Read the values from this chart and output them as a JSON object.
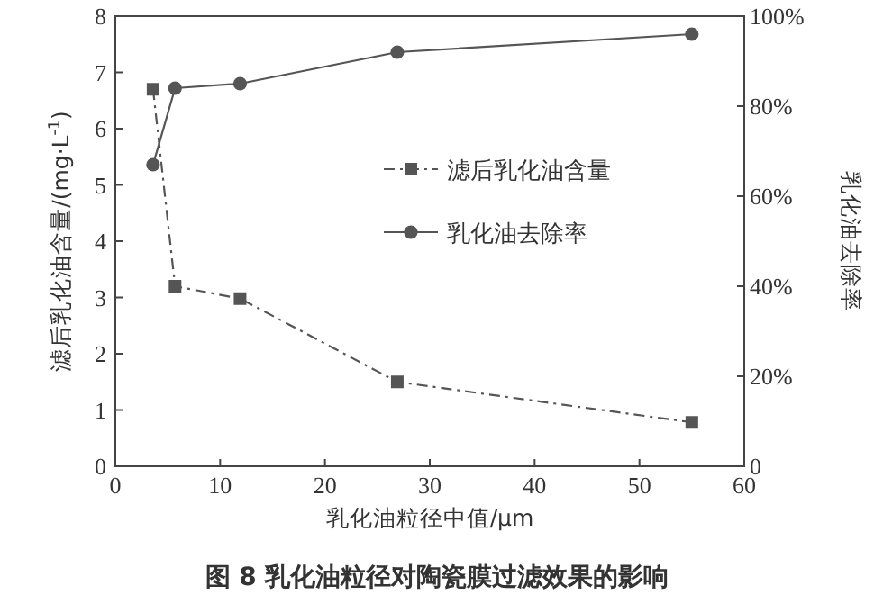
{
  "chart_data": {
    "type": "line",
    "title": "图 8   乳化油粒径对陶瓷膜过滤效果的影响",
    "xlabel": "乳化油粒径中值/μm",
    "ylabel": "滤后乳化油含量/(mg·L$^{-1}$)",
    "y2label": "乳化油去除率",
    "x": [
      3.6,
      5.7,
      11.9,
      26.9,
      55
    ],
    "series": [
      {
        "name": "滤后乳化油含量",
        "color": "#555555",
        "values": [
          6.7,
          3.2,
          2.98,
          1.5,
          0.78
        ],
        "marker": "square",
        "line_style": "dashdot"
      },
      {
        "name": "乳化油去除率",
        "color": "#555555",
        "values": [
          67,
          84,
          85,
          92,
          96
        ],
        "marker": "circle",
        "line_style": "solid",
        "axis": "y2"
      }
    ],
    "xlim": [
      0,
      60
    ],
    "xticks": [
      0,
      10,
      20,
      30,
      40,
      50,
      60
    ],
    "ylim": [
      0,
      8
    ],
    "yticks": [
      0,
      1,
      2,
      3,
      4,
      5,
      6,
      7,
      8
    ],
    "y2lim": [
      0,
      100
    ],
    "y2ticks": [
      0,
      {
        "value": 20,
        "label": "20%"
      },
      {
        "value": 40,
        "label": "40%"
      },
      {
        "value": 60,
        "label": "60%"
      },
      {
        "value": 80,
        "label": "80%"
      },
      {
        "value": 100,
        "label": "100%"
      }
    ],
    "grid": false,
    "legend": "right"
  }
}
